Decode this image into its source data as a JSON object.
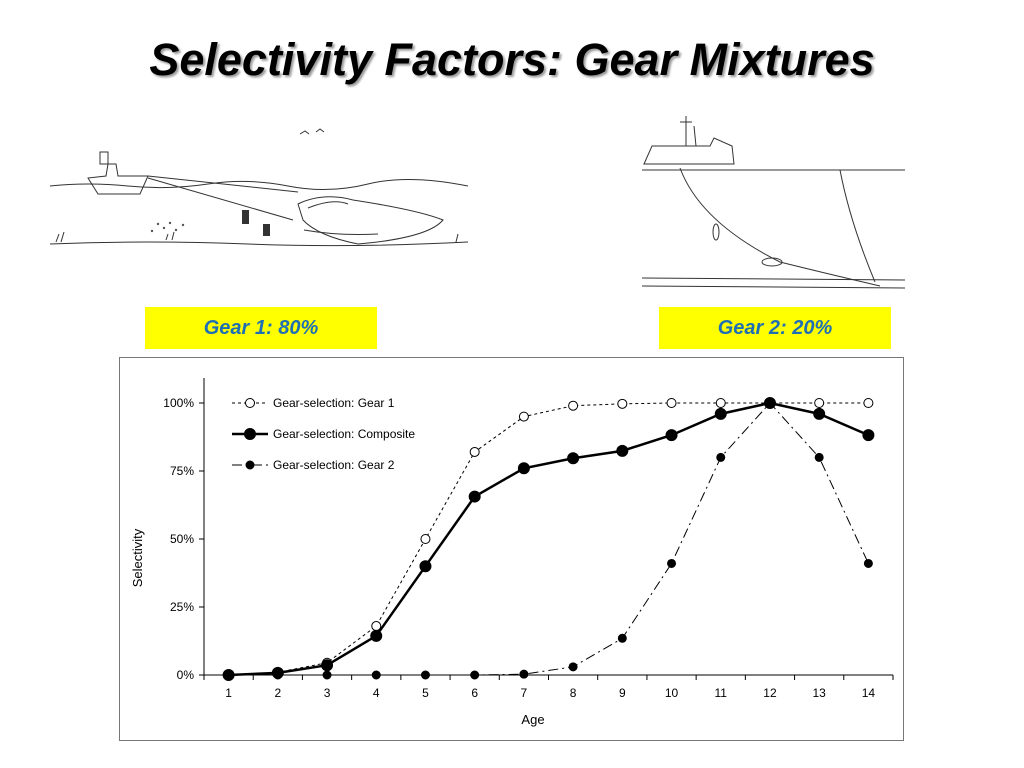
{
  "slide": {
    "title": "Selectivity Factors: Gear Mixtures"
  },
  "gear_labels": {
    "gear1": "Gear 1: 80%",
    "gear2": "Gear 2: 20%"
  },
  "colors": {
    "label_bg": "#ffff00",
    "label_text": "#1f6fb5",
    "line": "#000000"
  },
  "images": {
    "left": "trawl-net-sketch",
    "right": "longline-sketch"
  },
  "chart_data": {
    "type": "line",
    "xlabel": "Age",
    "ylabel": "Selectivity",
    "x": [
      1,
      2,
      3,
      4,
      5,
      6,
      7,
      8,
      9,
      10,
      11,
      12,
      13,
      14
    ],
    "ylim": [
      0,
      1
    ],
    "yticks": [
      0,
      0.25,
      0.5,
      0.75,
      1.0
    ],
    "ytick_labels": [
      "0%",
      "25%",
      "50%",
      "75%",
      "100%"
    ],
    "legend_position": "top-left",
    "grid": false,
    "series": [
      {
        "name": "Gear-selection: Gear 1",
        "style": "dotted-open-circle",
        "values": [
          0,
          0.01,
          0.045,
          0.18,
          0.5,
          0.82,
          0.95,
          0.99,
          0.997,
          1.0,
          1.0,
          1.0,
          1.0,
          1.0
        ]
      },
      {
        "name": "Gear-selection: Composite",
        "style": "solid-filled-circle",
        "values": [
          0,
          0.008,
          0.036,
          0.144,
          0.4,
          0.656,
          0.76,
          0.797,
          0.824,
          0.882,
          0.96,
          1.0,
          0.96,
          0.882
        ]
      },
      {
        "name": "Gear-selection: Gear 2",
        "style": "dashdot-small-filled-circle",
        "values": [
          0,
          0,
          0,
          0,
          0,
          0,
          0.003,
          0.03,
          0.135,
          0.41,
          0.8,
          1.0,
          0.8,
          0.41
        ]
      }
    ]
  }
}
